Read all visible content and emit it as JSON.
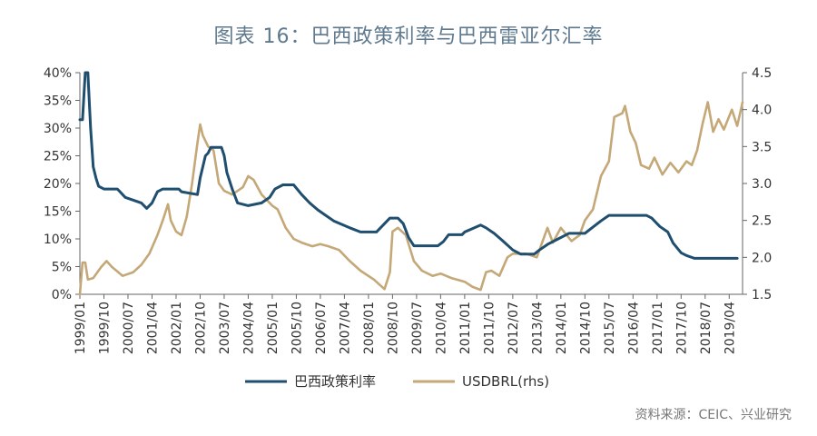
{
  "title": "图表 16：巴西政策利率与巴西雷亚尔汇率",
  "source": "资料来源：CEIC、兴业研究",
  "colors": {
    "policy_rate": "#1f4e6e",
    "usdbrl": "#c4a878",
    "axis": "#666666"
  },
  "chart_data": {
    "type": "line",
    "x_axis_type": "date",
    "x_tick_labels": [
      "1999/01",
      "1999/10",
      "2000/07",
      "2001/04",
      "2002/01",
      "2002/10",
      "2003/07",
      "2004/04",
      "2005/01",
      "2005/10",
      "2006/07",
      "2007/04",
      "2008/01",
      "2008/10",
      "2009/07",
      "2010/04",
      "2011/01",
      "2011/10",
      "2012/07",
      "2013/04",
      "2014/01",
      "2014/10",
      "2015/07",
      "2016/04",
      "2017/01",
      "2017/10",
      "2018/07",
      "2019/04"
    ],
    "y_left": {
      "min": 0,
      "max": 40,
      "ticks": [
        0,
        5,
        10,
        15,
        20,
        25,
        30,
        35,
        40
      ],
      "tick_labels": [
        "0%",
        "5%",
        "10%",
        "15%",
        "20%",
        "25%",
        "30%",
        "35%",
        "40%"
      ]
    },
    "y_right": {
      "min": 1.5,
      "max": 4.5,
      "ticks": [
        1.5,
        2.0,
        2.5,
        3.0,
        3.5,
        4.0,
        4.5
      ],
      "tick_labels": [
        "1.5",
        "2.0",
        "2.5",
        "3.0",
        "3.5",
        "4.0",
        "4.5"
      ]
    },
    "legend_position": "bottom",
    "grid": false,
    "series": [
      {
        "name": "巴西政策利率",
        "axis": "left",
        "points": [
          [
            "1999/01",
            31.5
          ],
          [
            "1999/02",
            31.5
          ],
          [
            "1999/03",
            40
          ],
          [
            "1999/04",
            40
          ],
          [
            "1999/05",
            30
          ],
          [
            "1999/06",
            23
          ],
          [
            "1999/07",
            21
          ],
          [
            "1999/08",
            19.5
          ],
          [
            "1999/10",
            19
          ],
          [
            "2000/03",
            19
          ],
          [
            "2000/04",
            18.5
          ],
          [
            "2000/06",
            17.5
          ],
          [
            "2000/12",
            16.5
          ],
          [
            "2001/02",
            15.5
          ],
          [
            "2001/04",
            16.5
          ],
          [
            "2001/06",
            18.5
          ],
          [
            "2001/08",
            19
          ],
          [
            "2002/02",
            19
          ],
          [
            "2002/03",
            18.5
          ],
          [
            "2002/09",
            18
          ],
          [
            "2002/10",
            21
          ],
          [
            "2002/12",
            25
          ],
          [
            "2003/01",
            25.5
          ],
          [
            "2003/02",
            26.5
          ],
          [
            "2003/06",
            26.5
          ],
          [
            "2003/07",
            25
          ],
          [
            "2003/08",
            22
          ],
          [
            "2003/10",
            19
          ],
          [
            "2003/12",
            16.5
          ],
          [
            "2004/04",
            16
          ],
          [
            "2004/09",
            16.5
          ],
          [
            "2004/12",
            17.5
          ],
          [
            "2005/02",
            19
          ],
          [
            "2005/05",
            19.75
          ],
          [
            "2005/09",
            19.75
          ],
          [
            "2005/12",
            18
          ],
          [
            "2006/03",
            16.5
          ],
          [
            "2006/06",
            15.25
          ],
          [
            "2006/09",
            14.25
          ],
          [
            "2006/12",
            13.25
          ],
          [
            "2007/06",
            12
          ],
          [
            "2007/10",
            11.25
          ],
          [
            "2008/04",
            11.25
          ],
          [
            "2008/06",
            12.25
          ],
          [
            "2008/09",
            13.75
          ],
          [
            "2008/12",
            13.75
          ],
          [
            "2009/02",
            12.75
          ],
          [
            "2009/04",
            10.25
          ],
          [
            "2009/06",
            8.75
          ],
          [
            "2010/03",
            8.75
          ],
          [
            "2010/05",
            9.5
          ],
          [
            "2010/07",
            10.75
          ],
          [
            "2010/12",
            10.75
          ],
          [
            "2011/01",
            11.25
          ],
          [
            "2011/07",
            12.5
          ],
          [
            "2011/09",
            12
          ],
          [
            "2011/12",
            11
          ],
          [
            "2012/03",
            9.75
          ],
          [
            "2012/07",
            8
          ],
          [
            "2012/10",
            7.25
          ],
          [
            "2013/03",
            7.25
          ],
          [
            "2013/05",
            8
          ],
          [
            "2013/08",
            9
          ],
          [
            "2013/12",
            10
          ],
          [
            "2014/04",
            11
          ],
          [
            "2014/10",
            11
          ],
          [
            "2014/12",
            11.75
          ],
          [
            "2015/04",
            13.25
          ],
          [
            "2015/07",
            14.25
          ],
          [
            "2016/09",
            14.25
          ],
          [
            "2016/11",
            13.75
          ],
          [
            "2017/02",
            12.25
          ],
          [
            "2017/05",
            11.25
          ],
          [
            "2017/07",
            9.25
          ],
          [
            "2017/10",
            7.5
          ],
          [
            "2017/12",
            7
          ],
          [
            "2018/03",
            6.5
          ],
          [
            "2019/07",
            6.5
          ]
        ]
      },
      {
        "name": "USDBRL(rhs)",
        "axis": "right",
        "points": [
          [
            "1999/01",
            1.5
          ],
          [
            "1999/02",
            1.93
          ],
          [
            "1999/03",
            1.93
          ],
          [
            "1999/04",
            1.7
          ],
          [
            "1999/06",
            1.72
          ],
          [
            "1999/09",
            1.87
          ],
          [
            "1999/11",
            1.95
          ],
          [
            "2000/01",
            1.87
          ],
          [
            "2000/05",
            1.75
          ],
          [
            "2000/09",
            1.8
          ],
          [
            "2000/12",
            1.9
          ],
          [
            "2001/03",
            2.05
          ],
          [
            "2001/06",
            2.3
          ],
          [
            "2001/08",
            2.5
          ],
          [
            "2001/10",
            2.72
          ],
          [
            "2001/11",
            2.5
          ],
          [
            "2002/01",
            2.35
          ],
          [
            "2002/03",
            2.3
          ],
          [
            "2002/05",
            2.55
          ],
          [
            "2002/07",
            3.0
          ],
          [
            "2002/09",
            3.55
          ],
          [
            "2002/10",
            3.8
          ],
          [
            "2002/11",
            3.65
          ],
          [
            "2003/01",
            3.5
          ],
          [
            "2003/03",
            3.45
          ],
          [
            "2003/05",
            3.0
          ],
          [
            "2003/07",
            2.9
          ],
          [
            "2003/10",
            2.85
          ],
          [
            "2004/02",
            2.95
          ],
          [
            "2004/04",
            3.1
          ],
          [
            "2004/06",
            3.05
          ],
          [
            "2004/09",
            2.85
          ],
          [
            "2005/01",
            2.7
          ],
          [
            "2005/03",
            2.65
          ],
          [
            "2005/06",
            2.4
          ],
          [
            "2005/09",
            2.25
          ],
          [
            "2005/12",
            2.2
          ],
          [
            "2006/04",
            2.15
          ],
          [
            "2006/07",
            2.18
          ],
          [
            "2006/10",
            2.15
          ],
          [
            "2007/02",
            2.1
          ],
          [
            "2007/06",
            1.95
          ],
          [
            "2007/10",
            1.82
          ],
          [
            "2008/03",
            1.7
          ],
          [
            "2008/07",
            1.57
          ],
          [
            "2008/09",
            1.8
          ],
          [
            "2008/10",
            2.35
          ],
          [
            "2008/12",
            2.4
          ],
          [
            "2009/03",
            2.3
          ],
          [
            "2009/06",
            1.95
          ],
          [
            "2009/09",
            1.82
          ],
          [
            "2010/01",
            1.75
          ],
          [
            "2010/04",
            1.78
          ],
          [
            "2010/08",
            1.72
          ],
          [
            "2011/01",
            1.67
          ],
          [
            "2011/04",
            1.6
          ],
          [
            "2011/07",
            1.56
          ],
          [
            "2011/09",
            1.8
          ],
          [
            "2011/11",
            1.82
          ],
          [
            "2012/02",
            1.75
          ],
          [
            "2012/05",
            2.0
          ],
          [
            "2012/07",
            2.05
          ],
          [
            "2012/12",
            2.05
          ],
          [
            "2013/04",
            2.0
          ],
          [
            "2013/06",
            2.2
          ],
          [
            "2013/08",
            2.4
          ],
          [
            "2013/10",
            2.2
          ],
          [
            "2014/01",
            2.4
          ],
          [
            "2014/05",
            2.22
          ],
          [
            "2014/08",
            2.3
          ],
          [
            "2014/10",
            2.5
          ],
          [
            "2015/01",
            2.65
          ],
          [
            "2015/04",
            3.1
          ],
          [
            "2015/07",
            3.3
          ],
          [
            "2015/09",
            3.9
          ],
          [
            "2015/12",
            3.95
          ],
          [
            "2016/01",
            4.05
          ],
          [
            "2016/03",
            3.7
          ],
          [
            "2016/05",
            3.55
          ],
          [
            "2016/07",
            3.25
          ],
          [
            "2016/10",
            3.2
          ],
          [
            "2016/12",
            3.35
          ],
          [
            "2017/03",
            3.12
          ],
          [
            "2017/06",
            3.28
          ],
          [
            "2017/09",
            3.15
          ],
          [
            "2017/12",
            3.3
          ],
          [
            "2018/02",
            3.25
          ],
          [
            "2018/04",
            3.45
          ],
          [
            "2018/06",
            3.8
          ],
          [
            "2018/08",
            4.1
          ],
          [
            "2018/10",
            3.7
          ],
          [
            "2018/12",
            3.87
          ],
          [
            "2019/02",
            3.73
          ],
          [
            "2019/05",
            4.0
          ],
          [
            "2019/07",
            3.78
          ],
          [
            "2019/09",
            4.1
          ]
        ]
      }
    ]
  }
}
